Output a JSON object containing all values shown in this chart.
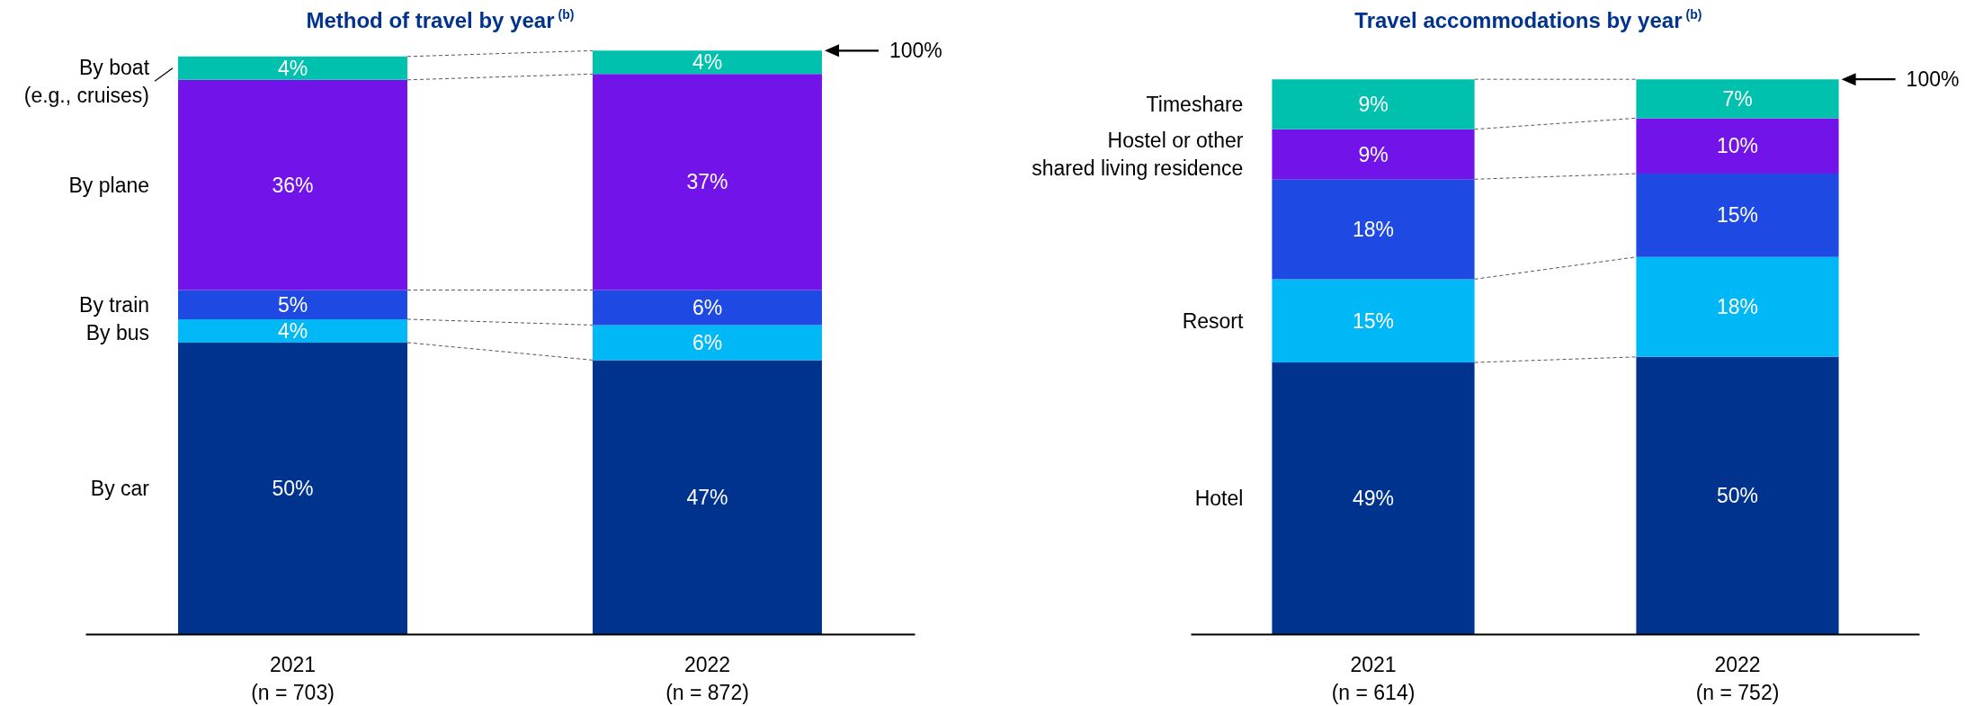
{
  "chart_data": [
    {
      "type": "bar",
      "title": "Method of travel by year $^{(b)}$",
      "categories": [
        "2021\n(n = 703)",
        "2022\n(n = 872)"
      ],
      "stacked": true,
      "tick_labels": "x",
      "series": [
        {
          "name": "By car",
          "color": "#00338d",
          "values": [
            50,
            47
          ],
          "value_labels": [
            "50%",
            "47%"
          ]
        },
        {
          "name": "By bus",
          "color": "#00b8f5",
          "values": [
            4,
            6
          ],
          "value_labels": [
            "4%",
            "6%"
          ]
        },
        {
          "name": "By train",
          "color": "#1e49e2",
          "values": [
            5,
            6
          ],
          "value_labels": [
            "5%",
            "6%"
          ]
        },
        {
          "name": "By plane",
          "color": "#7213ea",
          "values": [
            36,
            37
          ],
          "value_labels": [
            "36%",
            "37%"
          ]
        },
        {
          "name": "By boat\n(e.g., cruises)",
          "color": "#00c0ae",
          "values": [
            4,
            4
          ],
          "value_labels": [
            "4%",
            "4%"
          ]
        }
      ],
      "annotations": [
        "100%"
      ]
    },
    {
      "type": "bar",
      "title": "Travel accommodations by year $^{(b)}$",
      "categories": [
        "2021\n(n = 614)",
        "2022\n(n = 752)"
      ],
      "stacked": true,
      "tick_labels": "x",
      "series": [
        {
          "name": "Hotel",
          "color": "#00338d",
          "values": [
            49,
            50
          ],
          "value_labels": [
            "49%",
            "50%"
          ]
        },
        {
          "name": "Resort",
          "color": "#00b8f5",
          "values": [
            15,
            18
          ],
          "value_labels": [
            "15%",
            "18%"
          ]
        },
        {
          "name": null,
          "color": "#1e49e2",
          "values": [
            18,
            15
          ],
          "value_labels": [
            "18%",
            "15%"
          ]
        },
        {
          "name": "Hostel or other\nshared living residence",
          "color": "#7213ea",
          "values": [
            9,
            10
          ],
          "value_labels": [
            "9%",
            "10%"
          ]
        },
        {
          "name": "Timeshare",
          "color": "#00c0ae",
          "values": [
            9,
            7
          ],
          "value_labels": [
            "9%",
            "7%"
          ]
        }
      ],
      "annotations": [
        "100%"
      ]
    }
  ]
}
